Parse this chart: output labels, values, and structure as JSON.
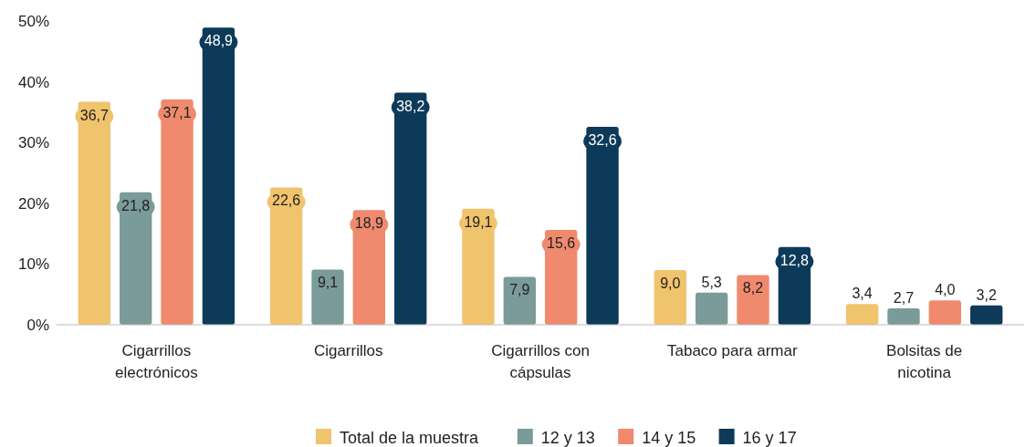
{
  "chart_data": {
    "type": "bar",
    "categories": [
      "Cigarrillos electrónicos",
      "Cigarrillos",
      "Cigarrillos con cápsulas",
      "Tabaco para armar",
      "Bolsitas de nicotina"
    ],
    "series": [
      {
        "name": "Total de la muestra",
        "color": "#f0c36d",
        "values": [
          36.7,
          22.6,
          19.1,
          9.0,
          3.4
        ],
        "value_labels": [
          "36,7",
          "22,6",
          "19,1",
          "9,0",
          "3,4"
        ]
      },
      {
        "name": "12 y 13",
        "color": "#7b9a9a",
        "values": [
          21.8,
          9.1,
          7.9,
          5.3,
          2.7
        ],
        "value_labels": [
          "21,8",
          "9,1",
          "7,9",
          "5,3",
          "2,7"
        ]
      },
      {
        "name": "14 y 15",
        "color": "#ef8a6e",
        "values": [
          37.1,
          18.9,
          15.6,
          8.2,
          4.0
        ],
        "value_labels": [
          "37,1",
          "18,9",
          "15,6",
          "8,2",
          "4,0"
        ]
      },
      {
        "name": "16 y 17",
        "color": "#0e3a5a",
        "values": [
          48.9,
          38.2,
          32.6,
          12.8,
          3.2
        ],
        "value_labels": [
          "48,9",
          "38,2",
          "32,6",
          "12,8",
          "3,2"
        ]
      }
    ],
    "ylim": [
      0,
      50
    ],
    "yticks": [
      {
        "value": 0,
        "label": "0%"
      },
      {
        "value": 10,
        "label": "10%"
      },
      {
        "value": 20,
        "label": "20%"
      },
      {
        "value": 30,
        "label": "30%"
      },
      {
        "value": 40,
        "label": "40%"
      },
      {
        "value": 50,
        "label": "50%"
      }
    ],
    "grid": false,
    "legend": "bottom"
  }
}
